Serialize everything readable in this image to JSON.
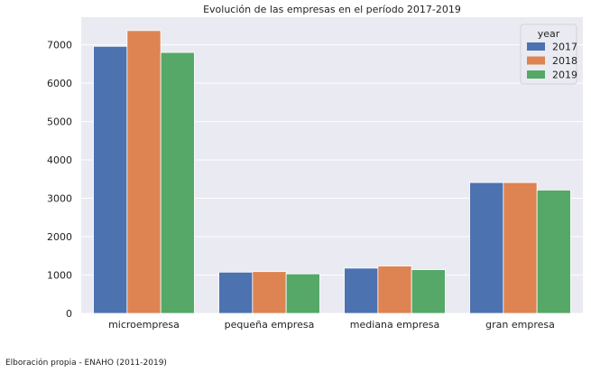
{
  "chart_data": {
    "type": "bar",
    "title": "Evolución de las empresas en el período 2017-2019",
    "xlabel": "",
    "ylabel": "",
    "categories": [
      "microempresa",
      "pequeña empresa",
      "mediana empresa",
      "gran empresa"
    ],
    "series": [
      {
        "name": "2017",
        "color": "#4c72b0",
        "values": [
          6960,
          1075,
          1180,
          3410
        ]
      },
      {
        "name": "2018",
        "color": "#dd8452",
        "values": [
          7370,
          1090,
          1235,
          3410
        ]
      },
      {
        "name": "2019",
        "color": "#55a868",
        "values": [
          6800,
          1030,
          1140,
          3215
        ]
      }
    ],
    "ylim": [
      0,
      7720
    ],
    "yticks": [
      0,
      1000,
      2000,
      3000,
      4000,
      5000,
      6000,
      7000
    ],
    "grid": true,
    "legend": {
      "title": "year",
      "placement": "top-right"
    }
  },
  "caption": "Elboración propia - ENAHO (2011-2019)"
}
